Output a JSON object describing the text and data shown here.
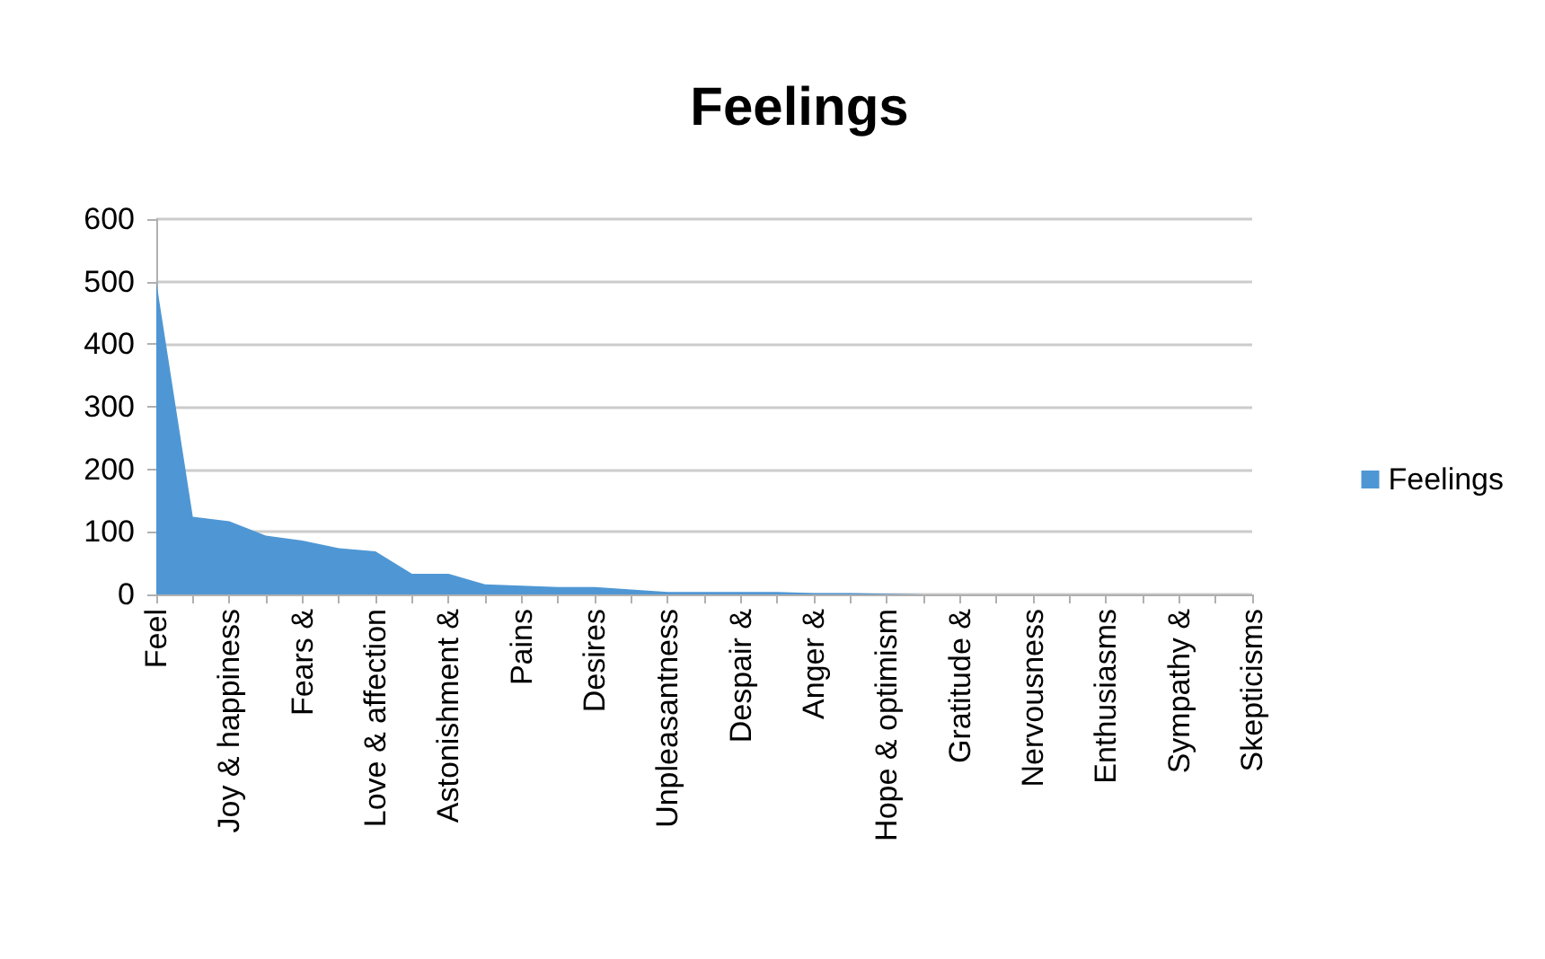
{
  "chart_data": {
    "type": "area",
    "title": "Feelings",
    "categories": [
      "Feel",
      null,
      "Joy & happiness",
      null,
      "Fears &",
      null,
      "Love & affection",
      null,
      "Astonishment &",
      null,
      "Pains",
      null,
      "Desires",
      null,
      "Unpleasantness",
      null,
      "Despair &",
      null,
      "Anger &",
      null,
      "Hope & optimism",
      null,
      "Gratitude &",
      null,
      "Nervousness",
      null,
      "Enthusiasms",
      null,
      "Sympathy &",
      null,
      "Skepticisms"
    ],
    "series": [
      {
        "name": "Feelings",
        "color": "#4f97d4",
        "values": [
          500,
          124,
          117,
          94,
          86,
          74,
          69,
          33,
          33,
          16,
          14,
          12,
          12,
          8,
          4,
          4,
          4,
          4,
          2,
          2,
          1,
          0,
          0,
          0,
          0,
          0,
          0,
          0,
          0,
          0,
          0
        ]
      }
    ],
    "ylim": [
      0,
      600
    ],
    "yticks": [
      0,
      100,
      200,
      300,
      400,
      500,
      600
    ],
    "grid": "y",
    "legend": "right"
  }
}
